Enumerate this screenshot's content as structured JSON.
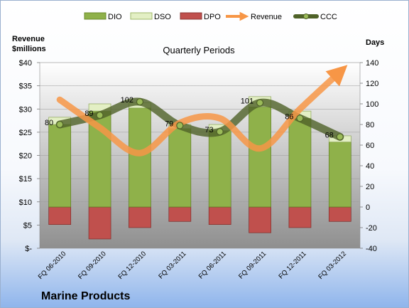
{
  "chart_data": {
    "type": "bar",
    "title": "Quarterly Periods",
    "company": "Marine Products",
    "ylabel_left": "Revenue\n$millions",
    "ylabel_right": "Days",
    "categories": [
      "FQ 06-2010",
      "FQ 09-2010",
      "FQ 12-2010",
      "FQ 03-2011",
      "FQ 06-2011",
      "FQ 09-2011",
      "FQ 12-2011",
      "FQ 03-2012"
    ],
    "left_axis": {
      "min": 0,
      "max": 40,
      "step": 5,
      "tick_labels": [
        "$-",
        "$5",
        "$10",
        "$15",
        "$20",
        "$25",
        "$30",
        "$35",
        "$40"
      ]
    },
    "right_axis": {
      "min": -40,
      "max": 140,
      "step": 20,
      "tick_labels": [
        "-40",
        "-20",
        "0",
        "20",
        "40",
        "60",
        "80",
        "100",
        "120",
        "140"
      ]
    },
    "legend": [
      "DIO",
      "DSO",
      "DPO",
      "Revenue",
      "CCC"
    ],
    "legend_position": "top",
    "series": [
      {
        "name": "DIO",
        "axis": "right",
        "color": "#8fb14a",
        "values": [
          80,
          93,
          96,
          76,
          74,
          97,
          86,
          63
        ]
      },
      {
        "name": "DSO",
        "axis": "right",
        "color": "#e3efc4",
        "values": [
          7,
          7,
          5,
          4,
          6,
          10,
          7,
          6
        ]
      },
      {
        "name": "DPO",
        "axis": "right",
        "color": "#c0504d",
        "values": [
          -17,
          -31,
          -20,
          -14,
          -17,
          -25,
          -20,
          -14
        ]
      },
      {
        "name": "Revenue",
        "axis": "left",
        "color": "#f79646",
        "values": [
          32,
          26,
          20.5,
          27,
          28,
          21.5,
          30,
          38
        ]
      },
      {
        "name": "CCC",
        "axis": "right",
        "color": "#4f6228",
        "values": [
          80,
          89,
          102,
          79,
          73,
          101,
          86,
          68
        ]
      }
    ],
    "ccc_labels": [
      "80",
      "89",
      "102",
      "79",
      "73",
      "101",
      "86",
      "68"
    ],
    "grid": true
  }
}
